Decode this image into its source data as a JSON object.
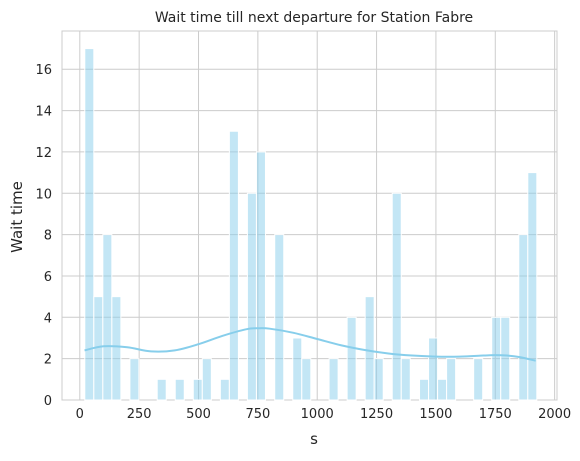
{
  "chart_data": {
    "type": "bar",
    "title": "Wait time till next departure for Station Fabre",
    "xlabel": "s",
    "ylabel": "Wait time",
    "xlim": [
      -75,
      2010
    ],
    "ylim": [
      0,
      17.85
    ],
    "x_ticks": [
      0,
      250,
      500,
      750,
      1000,
      1250,
      1500,
      1750,
      2000
    ],
    "y_ticks": [
      0,
      2,
      4,
      6,
      8,
      10,
      12,
      14,
      16
    ],
    "grid": true,
    "bin_width": 38,
    "bins": [
      {
        "x": 40,
        "value": 17
      },
      {
        "x": 78,
        "value": 5
      },
      {
        "x": 116,
        "value": 8
      },
      {
        "x": 154,
        "value": 5
      },
      {
        "x": 230,
        "value": 2
      },
      {
        "x": 345,
        "value": 1
      },
      {
        "x": 421,
        "value": 1
      },
      {
        "x": 497,
        "value": 1
      },
      {
        "x": 535,
        "value": 2
      },
      {
        "x": 611,
        "value": 1
      },
      {
        "x": 649,
        "value": 13
      },
      {
        "x": 725,
        "value": 10
      },
      {
        "x": 763,
        "value": 12
      },
      {
        "x": 840,
        "value": 8
      },
      {
        "x": 916,
        "value": 3
      },
      {
        "x": 954,
        "value": 2
      },
      {
        "x": 1069,
        "value": 2
      },
      {
        "x": 1145,
        "value": 4
      },
      {
        "x": 1221,
        "value": 5
      },
      {
        "x": 1259,
        "value": 2
      },
      {
        "x": 1335,
        "value": 10
      },
      {
        "x": 1373,
        "value": 2
      },
      {
        "x": 1450,
        "value": 1
      },
      {
        "x": 1488,
        "value": 3
      },
      {
        "x": 1526,
        "value": 1
      },
      {
        "x": 1564,
        "value": 2
      },
      {
        "x": 1678,
        "value": 2
      },
      {
        "x": 1754,
        "value": 4
      },
      {
        "x": 1792,
        "value": 4
      },
      {
        "x": 1868,
        "value": 8
      },
      {
        "x": 1906,
        "value": 11
      }
    ],
    "kde": {
      "x": [
        20,
        100,
        200,
        300,
        400,
        500,
        600,
        700,
        750,
        800,
        900,
        1000,
        1100,
        1200,
        1300,
        1400,
        1500,
        1600,
        1700,
        1750,
        1800,
        1850,
        1920
      ],
      "y": [
        2.4,
        2.6,
        2.55,
        2.35,
        2.4,
        2.7,
        3.1,
        3.42,
        3.47,
        3.45,
        3.25,
        2.95,
        2.65,
        2.42,
        2.25,
        2.15,
        2.1,
        2.1,
        2.15,
        2.17,
        2.15,
        2.08,
        1.9
      ]
    },
    "colors": {
      "bar_fill": "#87ceeb",
      "bar_fill_opacity": 0.5,
      "kde_line": "#87ceeb",
      "grid": "#cccccc",
      "text": "#262626"
    }
  }
}
